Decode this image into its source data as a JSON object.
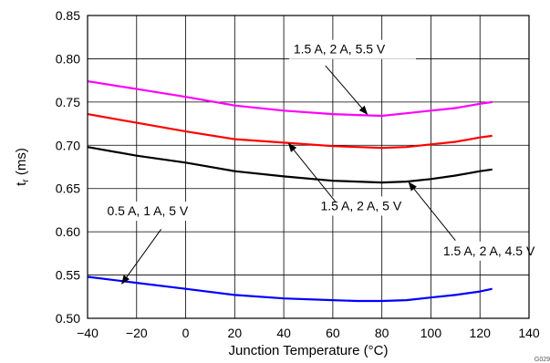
{
  "chart_data": {
    "type": "line",
    "title": "",
    "xlabel": "Junction Temperature (°C)",
    "ylabel_main": "t",
    "ylabel_sub": "r",
    "ylabel_unit": " (ms)",
    "xlim": [
      -40,
      140
    ],
    "ylim": [
      0.5,
      0.85
    ],
    "xticks": [
      -40,
      -20,
      0,
      20,
      40,
      60,
      80,
      100,
      120,
      140
    ],
    "yticks": [
      0.5,
      0.55,
      0.6,
      0.65,
      0.7,
      0.75,
      0.8,
      0.85
    ],
    "grid": true,
    "figure_id": "G029",
    "series": [
      {
        "label": "1.5 A, 2 A, 5.5 V",
        "color": "#ff00ff",
        "x": [
          -40,
          -20,
          0,
          20,
          40,
          60,
          70,
          80,
          90,
          100,
          110,
          120,
          125
        ],
        "y": [
          0.774,
          0.765,
          0.756,
          0.746,
          0.74,
          0.736,
          0.735,
          0.734,
          0.737,
          0.74,
          0.743,
          0.748,
          0.75
        ]
      },
      {
        "label": "1.5 A, 2 A, 5 V",
        "color": "#ff0000",
        "x": [
          -40,
          -20,
          0,
          20,
          40,
          60,
          70,
          80,
          90,
          100,
          110,
          120,
          125
        ],
        "y": [
          0.736,
          0.726,
          0.716,
          0.707,
          0.703,
          0.699,
          0.698,
          0.697,
          0.698,
          0.701,
          0.704,
          0.709,
          0.711
        ]
      },
      {
        "label": "1.5 A, 2 A, 4.5 V",
        "color": "#000000",
        "x": [
          -40,
          -20,
          0,
          20,
          40,
          60,
          70,
          80,
          90,
          100,
          110,
          120,
          125
        ],
        "y": [
          0.698,
          0.688,
          0.68,
          0.67,
          0.664,
          0.659,
          0.658,
          0.657,
          0.658,
          0.661,
          0.665,
          0.67,
          0.672
        ]
      },
      {
        "label": "0.5 A, 1 A, 5 V",
        "color": "#0000ff",
        "x": [
          -40,
          -20,
          0,
          20,
          40,
          60,
          70,
          80,
          90,
          100,
          110,
          120,
          125
        ],
        "y": [
          0.548,
          0.541,
          0.534,
          0.527,
          0.523,
          0.521,
          0.52,
          0.52,
          0.521,
          0.524,
          0.527,
          0.531,
          0.534
        ]
      }
    ],
    "annotations": [
      {
        "text": "1.5 A, 2 A, 5.5 V",
        "text_x": 44,
        "text_y": 0.806,
        "arrow_from": [
          57,
          0.792
        ],
        "arrow_to": [
          74,
          0.736
        ]
      },
      {
        "text": "1.5 A, 2 A, 5 V",
        "text_x": 55,
        "text_y": 0.625,
        "arrow_from": [
          61,
          0.635
        ],
        "arrow_to": [
          42,
          0.702
        ]
      },
      {
        "text": "1.5 A, 2 A, 4.5 V",
        "text_x": 105,
        "text_y": 0.573,
        "arrow_from": [
          110,
          0.59
        ],
        "arrow_to": [
          91,
          0.657
        ]
      },
      {
        "text": "0.5 A, 1 A, 5 V",
        "text_x": -32,
        "text_y": 0.619,
        "arrow_from": [
          -10,
          0.603
        ],
        "arrow_to": [
          -26,
          0.54
        ]
      }
    ]
  }
}
